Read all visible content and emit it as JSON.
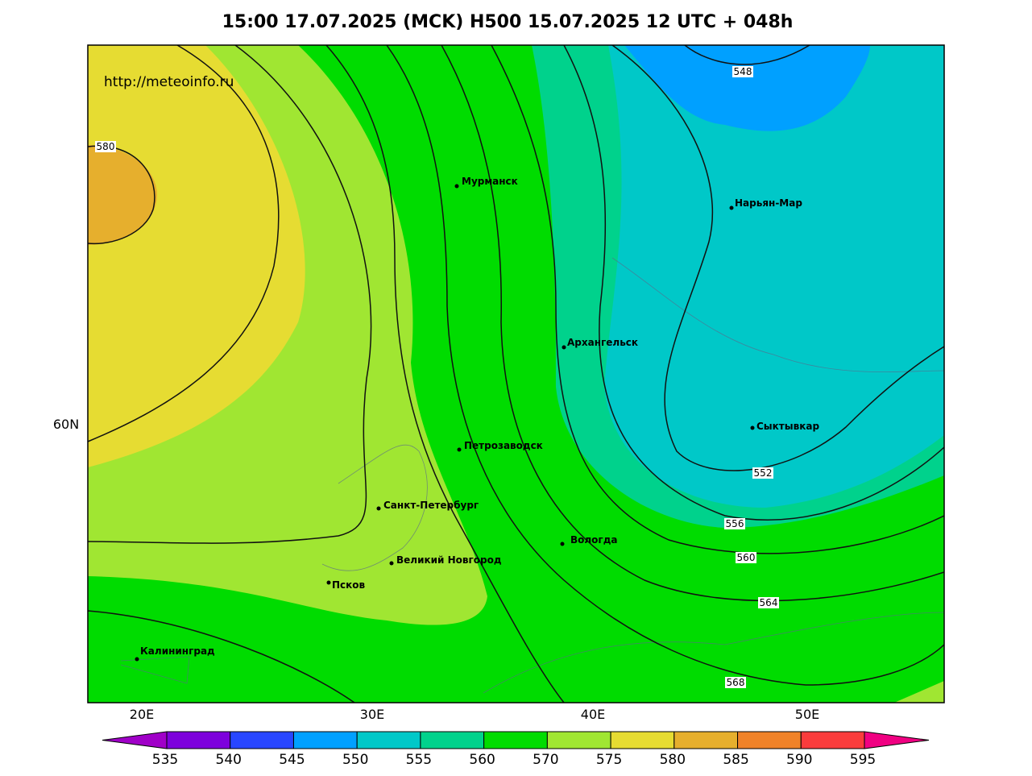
{
  "title": "15:00 17.07.2025 (MCK) H500  15.07.2025 12 UTC + 048h",
  "watermark": "http://meteoinfo.ru",
  "lon_labels": [
    "20E",
    "30E",
    "40E",
    "50E"
  ],
  "lat_labels": [
    "60N"
  ],
  "cities": [
    "Мурманск",
    "Нарьян-Мар",
    "Архангельск",
    "Сыктывкар",
    "Петрозаводск",
    "Санкт-Петербург",
    "Вологда",
    "Великий Новгород",
    "Псков",
    "Калининград"
  ],
  "contour_labels": [
    548,
    580,
    552,
    556,
    560,
    564,
    568
  ],
  "colorbar": {
    "levels": [
      535,
      540,
      545,
      550,
      555,
      560,
      570,
      575,
      580,
      585,
      590,
      595
    ],
    "colors": [
      "#a000c8",
      "#7d00dc",
      "#2846ff",
      "#00a0ff",
      "#00c8c8",
      "#00d28c",
      "#00dc00",
      "#a0e632",
      "#e6dc32",
      "#e6af2d",
      "#f08228",
      "#fa3c3c",
      "#f00082"
    ]
  }
}
